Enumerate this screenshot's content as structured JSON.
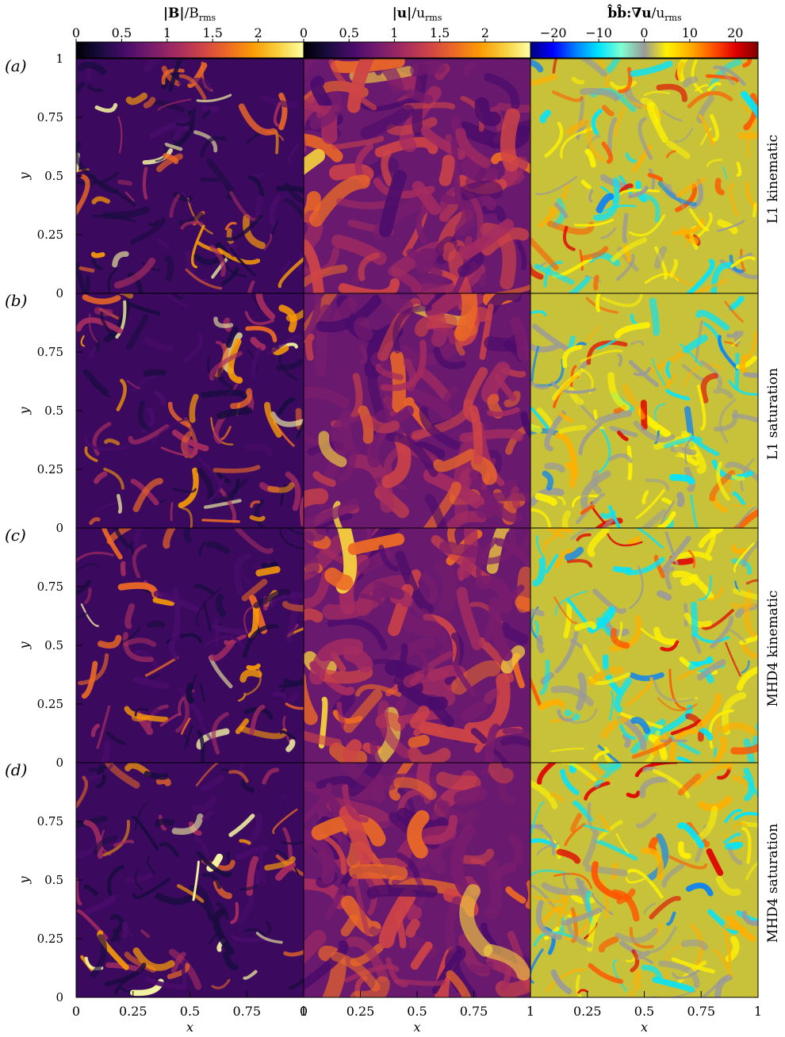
{
  "figure": {
    "columns": [
      {
        "id": "B",
        "title": "|B|/B_rms",
        "colormap": "inferno",
        "ticks": [
          "0",
          "0.5",
          "1",
          "1.5",
          "2"
        ],
        "range": [
          0,
          2.5
        ]
      },
      {
        "id": "u",
        "title": "|u|/u_rms",
        "colormap": "inferno",
        "ticks": [
          "0",
          "0.5",
          "1",
          "1.5",
          "2"
        ],
        "range": [
          0,
          2.5
        ]
      },
      {
        "id": "bbgradu",
        "title": "b̂b̂:∇u/u_rms",
        "colormap": "diverging-jet",
        "ticks": [
          "−20",
          "−10",
          "0",
          "10",
          "20"
        ],
        "range": [
          -25,
          25
        ]
      }
    ],
    "rows": [
      {
        "panel_label": "(a)",
        "side_label": "L1 kinematic"
      },
      {
        "panel_label": "(b)",
        "side_label": "L1 saturation"
      },
      {
        "panel_label": "(c)",
        "side_label": "MHD4 kinematic"
      },
      {
        "panel_label": "(d)",
        "side_label": "MHD4 saturation"
      }
    ],
    "y_ticks": [
      "0",
      "0.25",
      "0.5",
      "0.75",
      "1"
    ],
    "x_ticks": [
      "0",
      "0.25",
      "0.5",
      "0.75",
      "1"
    ],
    "x_ticks_first_panel": [
      "0",
      "0.25",
      "0.5",
      "0.75",
      "1"
    ],
    "x_label": "x",
    "y_label": "y",
    "colors": {
      "inferno": [
        "#000004",
        "#1b0c41",
        "#4a0c6b",
        "#781c6d",
        "#a52c60",
        "#cf4446",
        "#ed6925",
        "#fb9b06",
        "#f7d13d",
        "#fcffa4"
      ],
      "diverging": [
        "#00007f",
        "#0000ff",
        "#0080ff",
        "#00e5ff",
        "#7fffd0",
        "#9a9a9a",
        "#fff200",
        "#ffb000",
        "#ff5500",
        "#e00000",
        "#7f0000"
      ]
    }
  }
}
